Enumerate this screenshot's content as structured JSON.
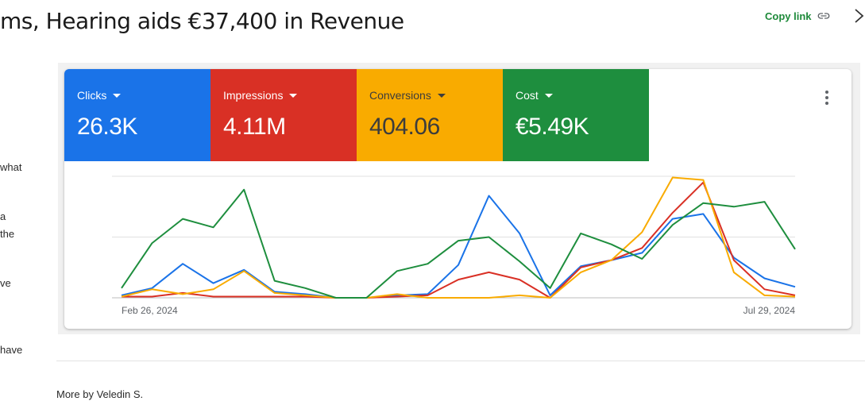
{
  "page": {
    "headline": "ms, Hearing aids €37,400 in Revenue",
    "copy_link": "Copy link",
    "side_text": [
      "what",
      "a",
      "the",
      "ve",
      "have"
    ],
    "more_by": "More by Veledin S."
  },
  "metrics": [
    {
      "label": "Clicks",
      "value": "26.3K",
      "color": "#1a73e8"
    },
    {
      "label": "Impressions",
      "value": "4.11M",
      "color": "#d93025"
    },
    {
      "label": "Conversions",
      "value": "404.06",
      "color": "#f9ab00"
    },
    {
      "label": "Cost",
      "value": "€5.49K",
      "color": "#1e8e3e"
    }
  ],
  "chart_data": {
    "type": "line",
    "x_start_label": "Feb 26, 2024",
    "x_end_label": "Jul 29, 2024",
    "grid": true,
    "ylim": [
      0,
      100
    ],
    "series": [
      {
        "name": "Clicks",
        "color": "#1a73e8",
        "values": [
          2,
          8,
          28,
          12,
          23,
          5,
          3,
          0,
          0,
          2,
          3,
          27,
          84,
          53,
          2,
          26,
          31,
          37,
          65,
          69,
          33,
          16,
          9
        ]
      },
      {
        "name": "Impressions",
        "color": "#d93025",
        "values": [
          1,
          1,
          4,
          1,
          1,
          1,
          1,
          0,
          0,
          1,
          2,
          15,
          21,
          15,
          0,
          25,
          31,
          41,
          70,
          95,
          31,
          7,
          2
        ]
      },
      {
        "name": "Conversions",
        "color": "#f9ab00",
        "values": [
          1,
          7,
          3,
          7,
          22,
          4,
          2,
          0,
          0,
          3,
          0,
          0,
          0,
          2,
          0,
          21,
          31,
          54,
          99,
          97,
          21,
          2,
          1
        ]
      },
      {
        "name": "Cost",
        "color": "#1e8e3e",
        "values": [
          8,
          45,
          65,
          58,
          89,
          14,
          8,
          0,
          0,
          22,
          28,
          47,
          50,
          30,
          8,
          53,
          44,
          32,
          60,
          78,
          75,
          79,
          40
        ]
      }
    ]
  }
}
